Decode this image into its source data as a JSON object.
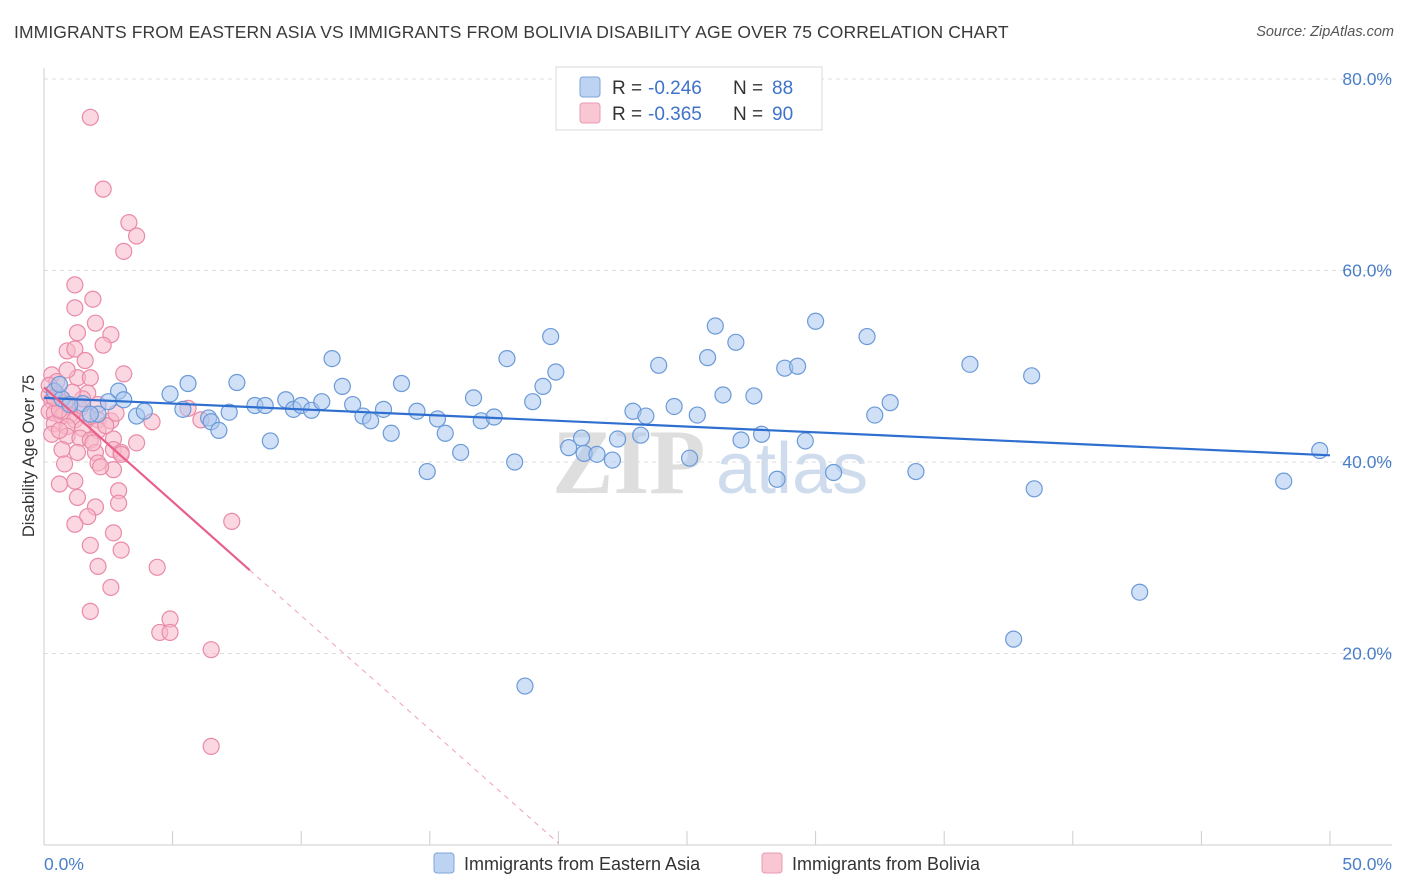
{
  "title": "IMMIGRANTS FROM EASTERN ASIA VS IMMIGRANTS FROM BOLIVIA DISABILITY AGE OVER 75 CORRELATION CHART",
  "source": "Source: ZipAtlas.com",
  "watermark": {
    "zip": "ZIP",
    "atlas": "atlas"
  },
  "legend_top": [
    {
      "r_label": "R =",
      "r_value": "-0.246",
      "n_label": "N =",
      "n_value": "88"
    },
    {
      "r_label": "R =",
      "r_value": "-0.365",
      "n_label": "N =",
      "n_value": "90"
    }
  ],
  "colors": {
    "blue_fill": "#a9c6ee",
    "blue_stroke": "#6b9ad8",
    "blue_line": "#2f6fcf",
    "pink_fill": "#f7b6c9",
    "pink_stroke": "#e98aa8",
    "pink_line": "#e8608a",
    "axis_text": "#4a7fc8",
    "grid": "#dddddd"
  },
  "chart_data": {
    "type": "scatter",
    "title": "IMMIGRANTS FROM EASTERN ASIA VS IMMIGRANTS FROM BOLIVIA DISABILITY AGE OVER 75 CORRELATION CHART",
    "xlabel": "",
    "ylabel": "Disability Age Over 75",
    "xlim": [
      0,
      50
    ],
    "ylim": [
      0,
      80
    ],
    "x_tick_labels": [
      "0.0%",
      "50.0%"
    ],
    "y_ticks": [
      20,
      40,
      60,
      80
    ],
    "y_tick_labels": [
      "20.0%",
      "40.0%",
      "60.0%",
      "80.0%"
    ],
    "grid": true,
    "legend_position": "top-center and bottom",
    "series": [
      {
        "name": "Immigrants from Eastern Asia",
        "color": "#a9c6ee",
        "trend": {
          "x0": 0,
          "y0": 46.7,
          "x1": 50,
          "y1": 40.7
        },
        "points": [
          [
            0.4,
            47.4
          ],
          [
            0.7,
            46.6
          ],
          [
            1.5,
            46.1
          ],
          [
            2.1,
            45.0
          ],
          [
            2.9,
            47.4
          ],
          [
            3.1,
            46.5
          ],
          [
            3.6,
            44.8
          ],
          [
            3.9,
            45.3
          ],
          [
            4.9,
            47.1
          ],
          [
            5.4,
            45.5
          ],
          [
            5.6,
            48.2
          ],
          [
            6.4,
            44.6
          ],
          [
            6.5,
            44.2
          ],
          [
            6.8,
            43.3
          ],
          [
            7.2,
            45.2
          ],
          [
            7.5,
            48.3
          ],
          [
            8.2,
            45.9
          ],
          [
            8.6,
            45.9
          ],
          [
            8.8,
            42.2
          ],
          [
            9.4,
            46.5
          ],
          [
            9.7,
            45.5
          ],
          [
            10.0,
            45.9
          ],
          [
            10.4,
            45.4
          ],
          [
            10.8,
            46.3
          ],
          [
            11.2,
            50.8
          ],
          [
            11.6,
            47.9
          ],
          [
            12.0,
            46.0
          ],
          [
            12.4,
            44.8
          ],
          [
            12.7,
            44.3
          ],
          [
            13.2,
            45.5
          ],
          [
            13.5,
            43.0
          ],
          [
            13.9,
            48.2
          ],
          [
            14.5,
            45.3
          ],
          [
            14.9,
            39.0
          ],
          [
            15.3,
            44.5
          ],
          [
            15.6,
            43.0
          ],
          [
            16.2,
            41.0
          ],
          [
            16.7,
            46.7
          ],
          [
            17.0,
            44.3
          ],
          [
            17.5,
            44.7
          ],
          [
            18.0,
            50.8
          ],
          [
            18.3,
            40.0
          ],
          [
            19.0,
            46.3
          ],
          [
            19.4,
            47.9
          ],
          [
            19.7,
            53.1
          ],
          [
            19.9,
            49.4
          ],
          [
            20.4,
            41.5
          ],
          [
            20.9,
            42.5
          ],
          [
            21.0,
            40.9
          ],
          [
            21.5,
            40.8
          ],
          [
            22.1,
            40.2
          ],
          [
            22.3,
            42.4
          ],
          [
            22.9,
            45.3
          ],
          [
            23.2,
            42.8
          ],
          [
            23.4,
            44.8
          ],
          [
            23.9,
            50.1
          ],
          [
            24.5,
            45.8
          ],
          [
            25.1,
            40.4
          ],
          [
            25.4,
            44.9
          ],
          [
            25.8,
            50.9
          ],
          [
            26.1,
            54.2
          ],
          [
            26.4,
            47.0
          ],
          [
            26.9,
            52.5
          ],
          [
            27.1,
            42.3
          ],
          [
            27.6,
            46.9
          ],
          [
            27.9,
            42.9
          ],
          [
            28.5,
            38.2
          ],
          [
            28.8,
            49.8
          ],
          [
            29.3,
            50.0
          ],
          [
            29.6,
            42.2
          ],
          [
            30.0,
            54.7
          ],
          [
            30.7,
            38.9
          ],
          [
            32.0,
            53.1
          ],
          [
            32.3,
            44.9
          ],
          [
            32.9,
            46.2
          ],
          [
            33.9,
            39.0
          ],
          [
            36.0,
            50.2
          ],
          [
            37.7,
            21.5
          ],
          [
            38.4,
            49.0
          ],
          [
            38.5,
            37.2
          ],
          [
            42.6,
            26.4
          ],
          [
            48.2,
            38.0
          ],
          [
            49.6,
            41.2
          ],
          [
            18.7,
            16.6
          ],
          [
            0.6,
            48.1
          ],
          [
            1.0,
            46.0
          ],
          [
            1.8,
            45.0
          ],
          [
            2.5,
            46.3
          ]
        ]
      },
      {
        "name": "Immigrants from Bolivia",
        "color": "#f7b6c9",
        "trend": {
          "x0": 0,
          "y0": 47.8,
          "x1": 8,
          "y1": 28.7
        },
        "trend_dashed": {
          "x0": 8,
          "y0": 28.7,
          "x1": 20,
          "y1": 0.2
        },
        "points": [
          [
            1.8,
            76.0
          ],
          [
            2.3,
            68.5
          ],
          [
            3.3,
            65.0
          ],
          [
            3.6,
            63.6
          ],
          [
            3.1,
            62.0
          ],
          [
            1.2,
            58.5
          ],
          [
            1.2,
            56.1
          ],
          [
            1.9,
            57.0
          ],
          [
            2.0,
            54.5
          ],
          [
            2.6,
            53.3
          ],
          [
            1.3,
            53.5
          ],
          [
            2.3,
            52.2
          ],
          [
            0.9,
            51.6
          ],
          [
            1.2,
            51.8
          ],
          [
            0.3,
            49.1
          ],
          [
            0.5,
            48.4
          ],
          [
            1.3,
            48.8
          ],
          [
            1.8,
            48.8
          ],
          [
            3.1,
            49.2
          ],
          [
            0.2,
            47.0
          ],
          [
            0.5,
            47.1
          ],
          [
            1.7,
            47.2
          ],
          [
            0.3,
            46.4
          ],
          [
            0.8,
            46.2
          ],
          [
            1.0,
            45.8
          ],
          [
            1.4,
            45.6
          ],
          [
            2.1,
            46.0
          ],
          [
            0.2,
            45.3
          ],
          [
            0.4,
            45.1
          ],
          [
            0.7,
            44.8
          ],
          [
            1.0,
            44.9
          ],
          [
            1.2,
            44.4
          ],
          [
            1.7,
            44.7
          ],
          [
            2.1,
            44.4
          ],
          [
            2.6,
            44.3
          ],
          [
            0.4,
            44.0
          ],
          [
            0.9,
            43.7
          ],
          [
            1.5,
            43.5
          ],
          [
            2.1,
            43.3
          ],
          [
            0.3,
            42.9
          ],
          [
            0.9,
            42.7
          ],
          [
            1.4,
            42.5
          ],
          [
            1.8,
            42.3
          ],
          [
            2.7,
            42.4
          ],
          [
            0.7,
            41.3
          ],
          [
            1.3,
            41.0
          ],
          [
            2.0,
            41.0
          ],
          [
            2.7,
            41.3
          ],
          [
            3.0,
            41.0
          ],
          [
            0.8,
            39.8
          ],
          [
            2.1,
            39.9
          ],
          [
            2.7,
            39.2
          ],
          [
            1.2,
            38.0
          ],
          [
            0.6,
            37.7
          ],
          [
            2.9,
            37.0
          ],
          [
            1.3,
            36.3
          ],
          [
            2.0,
            35.3
          ],
          [
            2.9,
            35.7
          ],
          [
            1.7,
            34.3
          ],
          [
            1.2,
            33.5
          ],
          [
            2.7,
            32.6
          ],
          [
            1.8,
            31.3
          ],
          [
            3.0,
            30.8
          ],
          [
            2.1,
            29.1
          ],
          [
            4.4,
            29.0
          ],
          [
            2.6,
            26.9
          ],
          [
            1.8,
            24.4
          ],
          [
            4.9,
            23.6
          ],
          [
            4.5,
            22.2
          ],
          [
            4.9,
            22.2
          ],
          [
            6.5,
            20.4
          ],
          [
            6.5,
            10.3
          ],
          [
            7.3,
            33.8
          ],
          [
            5.6,
            45.6
          ],
          [
            4.2,
            44.2
          ],
          [
            6.1,
            44.4
          ],
          [
            3.0,
            40.8
          ],
          [
            1.5,
            46.6
          ],
          [
            0.6,
            45.4
          ],
          [
            1.1,
            47.3
          ],
          [
            2.4,
            43.8
          ],
          [
            0.2,
            48.0
          ],
          [
            0.9,
            49.6
          ],
          [
            1.6,
            50.6
          ],
          [
            2.8,
            45.1
          ],
          [
            3.6,
            42.0
          ],
          [
            0.6,
            43.3
          ],
          [
            1.9,
            42.0
          ],
          [
            2.2,
            39.5
          ],
          [
            0.4,
            46.7
          ]
        ]
      }
    ]
  }
}
